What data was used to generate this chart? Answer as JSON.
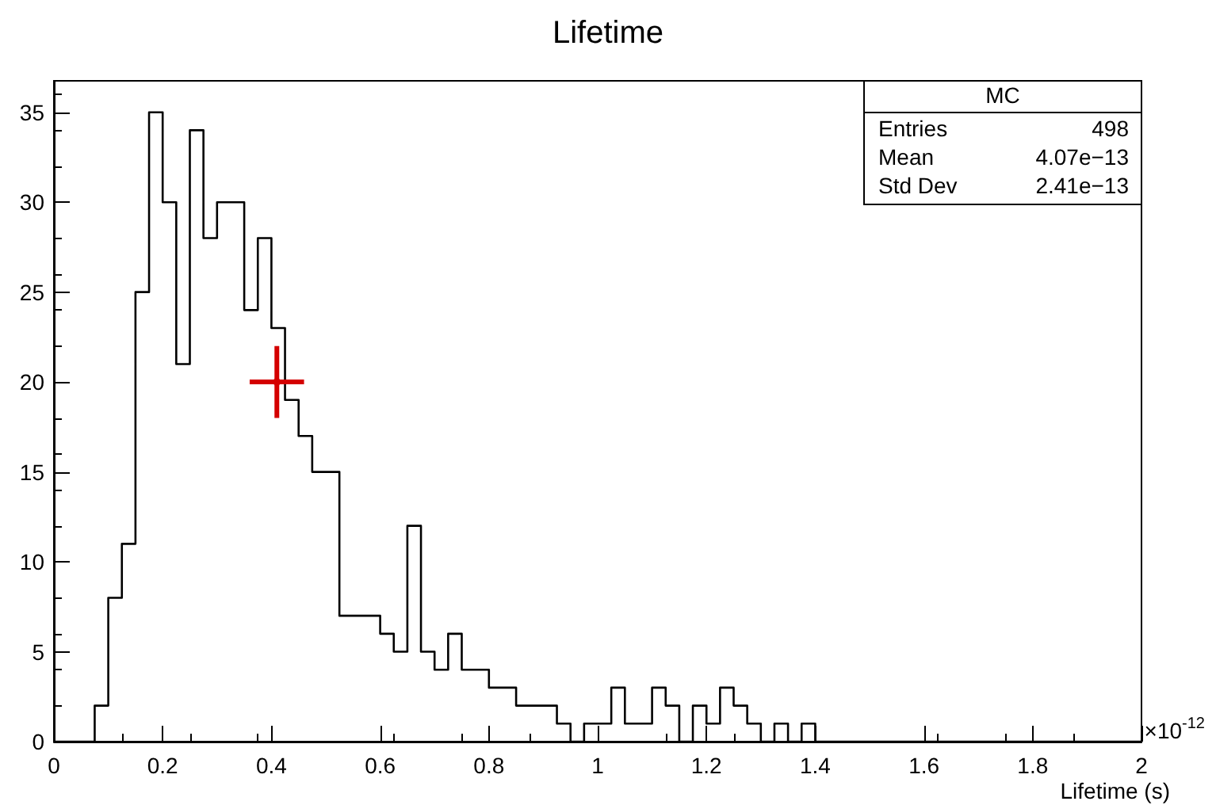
{
  "chart_data": {
    "type": "histogram",
    "title": "Lifetime",
    "xlabel": "Lifetime (s)",
    "bins": [
      0,
      0.025,
      0.05,
      0.075,
      0.1,
      0.125,
      0.15,
      0.175,
      0.2,
      0.225,
      0.25,
      0.275,
      0.3,
      0.325,
      0.35,
      0.375,
      0.4,
      0.425,
      0.45,
      0.475,
      0.5,
      0.525,
      0.55,
      0.575,
      0.6,
      0.625,
      0.65,
      0.675,
      0.7,
      0.725,
      0.75,
      0.775,
      0.8,
      0.825,
      0.85,
      0.875,
      0.9,
      0.925,
      0.95,
      0.975,
      1,
      1.025,
      1.05,
      1.075,
      1.1,
      1.125,
      1.15,
      1.175,
      1.2,
      1.225,
      1.25,
      1.275,
      1.3,
      1.325,
      1.35,
      1.375,
      1.4,
      1.425,
      1.45,
      1.475,
      1.5,
      1.525,
      1.55,
      1.575,
      1.6,
      1.625,
      1.65,
      1.675,
      1.7,
      1.725,
      1.75,
      1.775,
      1.8,
      1.825,
      1.85,
      1.875,
      1.9,
      1.925,
      1.95,
      1.975,
      2
    ],
    "series": [
      {
        "color": "#000000",
        "values": [
          0,
          0,
          0,
          2,
          8,
          11,
          25,
          35,
          30,
          21,
          34,
          28,
          30,
          30,
          24,
          28,
          23,
          19,
          17,
          15,
          15,
          7,
          7,
          7,
          6,
          5,
          12,
          5,
          4,
          6,
          4,
          4,
          3,
          3,
          2,
          2,
          2,
          1,
          0,
          1,
          1,
          3,
          1,
          1,
          3,
          2,
          0,
          2,
          1,
          3,
          2,
          1,
          0,
          1,
          0,
          1,
          0,
          0,
          0,
          0,
          0,
          0,
          0,
          0,
          0,
          0,
          0,
          0,
          0,
          0,
          0,
          0,
          0,
          0,
          0,
          0,
          0,
          0,
          0,
          0
        ]
      },
      {
        "type": "scatter",
        "color": "#d40000",
        "x": [
          0.41
        ],
        "values": [
          20
        ],
        "errors": [
          2
        ],
        "xerrors": [
          0.05
        ]
      }
    ],
    "xlim": [
      0,
      2
    ],
    "xticks": [
      0,
      0.2,
      0.4,
      0.6,
      0.8,
      1,
      1.2,
      1.4,
      1.6,
      1.8,
      2
    ],
    "ylim": [
      0,
      36.75
    ],
    "yticks": [
      0,
      5,
      10,
      15,
      20,
      25,
      30,
      35
    ],
    "grid": false,
    "annotations": [
      "×10$^{-12}$",
      "MC",
      "Entries",
      "498",
      "Mean",
      "4.07e−13",
      "Std Dev",
      "2.41e−13"
    ]
  }
}
